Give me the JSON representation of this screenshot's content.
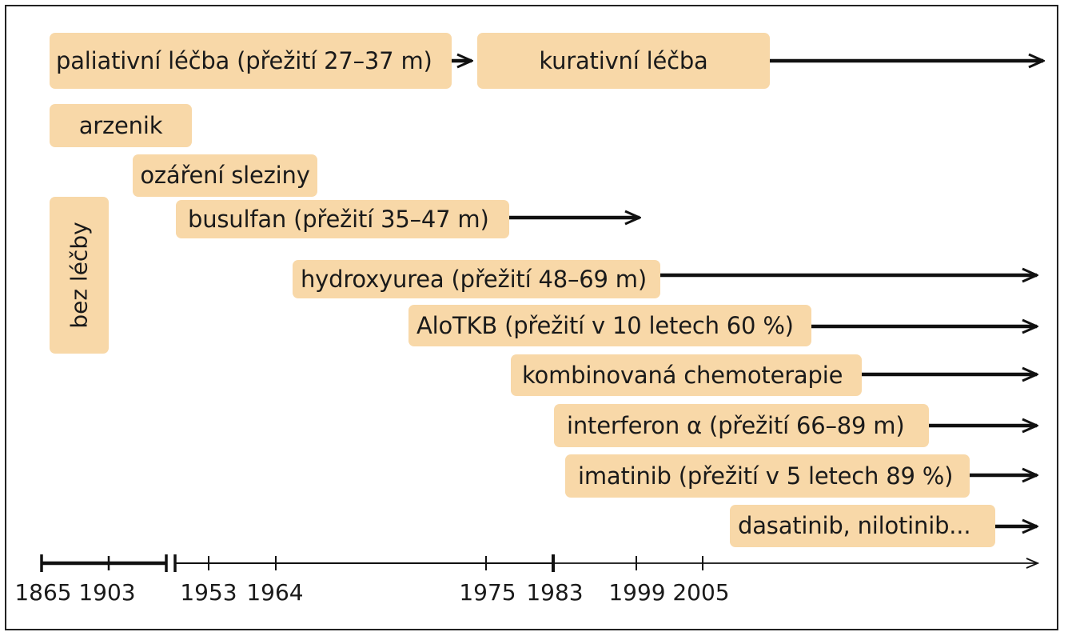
{
  "diagram": {
    "boxes": {
      "paliativni": "paliativní léčba (přežití 27–37 m)",
      "kurativni": "kurativní léčba",
      "arzenik": "arzenik",
      "ozareni": "ozáření sleziny",
      "busulfan": "busulfan (přežití 35–47 m)",
      "bez_lecby": "bez léčby",
      "hydroxyurea": "hydroxyurea (přežití 48–69 m)",
      "alotkb": "AloTKB (přežití v 10 letech 60 %)",
      "kombinovana": "kombinovaná chemoterapie",
      "interferon": "interferon α (přežití 66–89 m)",
      "imatinib": "imatinib (přežití v 5 letech 89 %)",
      "dasatinib": "dasatinib, nilotinib..."
    },
    "axis_years": [
      "1865",
      "1903",
      "1953",
      "1964",
      "1975",
      "1983",
      "1999",
      "2005"
    ]
  },
  "colors": {
    "box_fill": "#f8d8a8",
    "line": "#111111"
  }
}
